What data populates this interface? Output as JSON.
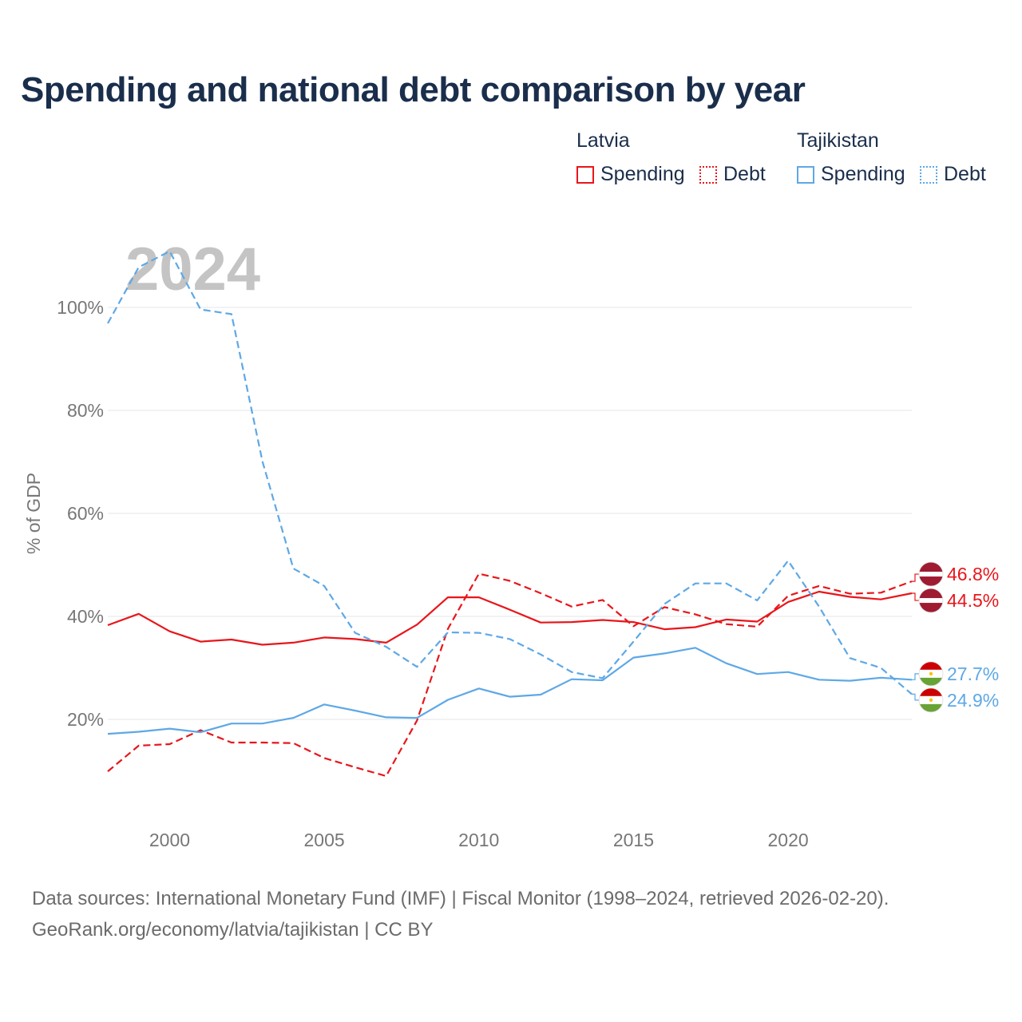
{
  "title": "Spending and national debt comparison by year",
  "legend": {
    "groups": [
      {
        "name": "Latvia",
        "color": "#e8161b",
        "items": [
          {
            "label": "Spending",
            "style": "solid"
          },
          {
            "label": "Debt",
            "style": "dotted"
          }
        ]
      },
      {
        "name": "Tajikistan",
        "color": "#5ea8e6",
        "items": [
          {
            "label": "Spending",
            "style": "solid"
          },
          {
            "label": "Debt",
            "style": "dotted"
          }
        ]
      }
    ]
  },
  "chart_data": {
    "type": "line",
    "year_label": "2024",
    "ylabel": "% of GDP",
    "xlim": [
      1998,
      2024
    ],
    "ylim": [
      0,
      110
    ],
    "y_ticks": [
      20,
      40,
      60,
      80,
      100
    ],
    "y_tick_labels": [
      "20%",
      "40%",
      "60%",
      "80%",
      "100%"
    ],
    "x_ticks": [
      2000,
      2005,
      2010,
      2015,
      2020
    ],
    "x_tick_labels": [
      "2000",
      "2005",
      "2010",
      "2015",
      "2020"
    ],
    "x": [
      1998,
      1999,
      2000,
      2001,
      2002,
      2003,
      2004,
      2005,
      2006,
      2007,
      2008,
      2009,
      2010,
      2011,
      2012,
      2013,
      2014,
      2015,
      2016,
      2017,
      2018,
      2019,
      2020,
      2021,
      2022,
      2023,
      2024
    ],
    "series": [
      {
        "name": "Latvia Spending",
        "country": "Latvia",
        "metric": "Spending",
        "color": "#e8161b",
        "dash": "solid",
        "values": [
          38.3,
          40.5,
          37.1,
          35.1,
          35.5,
          34.5,
          34.9,
          35.9,
          35.6,
          34.9,
          38.4,
          43.7,
          43.7,
          41.3,
          38.8,
          38.9,
          39.3,
          38.9,
          37.5,
          37.9,
          39.4,
          39.0,
          42.8,
          44.8,
          43.8,
          43.3,
          44.5
        ],
        "end_label": "44.5%"
      },
      {
        "name": "Latvia Debt",
        "country": "Latvia",
        "metric": "Debt",
        "color": "#e8161b",
        "dash": "dashed",
        "values": [
          9.9,
          14.9,
          15.2,
          17.9,
          15.5,
          15.5,
          15.4,
          12.5,
          10.7,
          9.0,
          19.8,
          37.6,
          48.3,
          46.9,
          44.5,
          41.9,
          43.2,
          38.1,
          41.8,
          40.4,
          38.5,
          38.0,
          44.0,
          45.9,
          44.4,
          44.6,
          46.8
        ],
        "end_label": "46.8%"
      },
      {
        "name": "Tajikistan Spending",
        "country": "Tajikistan",
        "metric": "Spending",
        "color": "#5ea8e6",
        "dash": "solid",
        "values": [
          17.2,
          17.6,
          18.2,
          17.5,
          19.2,
          19.2,
          20.3,
          22.9,
          21.7,
          20.4,
          20.3,
          23.8,
          26.0,
          24.4,
          24.8,
          27.8,
          27.6,
          32.0,
          32.8,
          33.9,
          30.9,
          28.8,
          29.2,
          27.7,
          27.5,
          28.1,
          27.7
        ],
        "end_label": "27.7%"
      },
      {
        "name": "Tajikistan Debt",
        "country": "Tajikistan",
        "metric": "Debt",
        "color": "#5ea8e6",
        "dash": "dashed",
        "values": [
          96.9,
          107.8,
          110.9,
          99.6,
          98.7,
          70.1,
          49.3,
          45.9,
          36.8,
          34.1,
          30.2,
          36.9,
          36.8,
          35.6,
          32.6,
          29.2,
          28.0,
          35.1,
          42.4,
          46.4,
          46.4,
          43.1,
          50.8,
          41.9,
          31.9,
          30.0,
          24.9
        ],
        "end_label": "24.9%"
      }
    ]
  },
  "source": {
    "line1": "Data sources: International Monetary Fund (IMF) | Fiscal Monitor (1998–2024, retrieved 2026-02-20).",
    "line2": "GeoRank.org/economy/latvia/tajikistan | CC BY"
  }
}
